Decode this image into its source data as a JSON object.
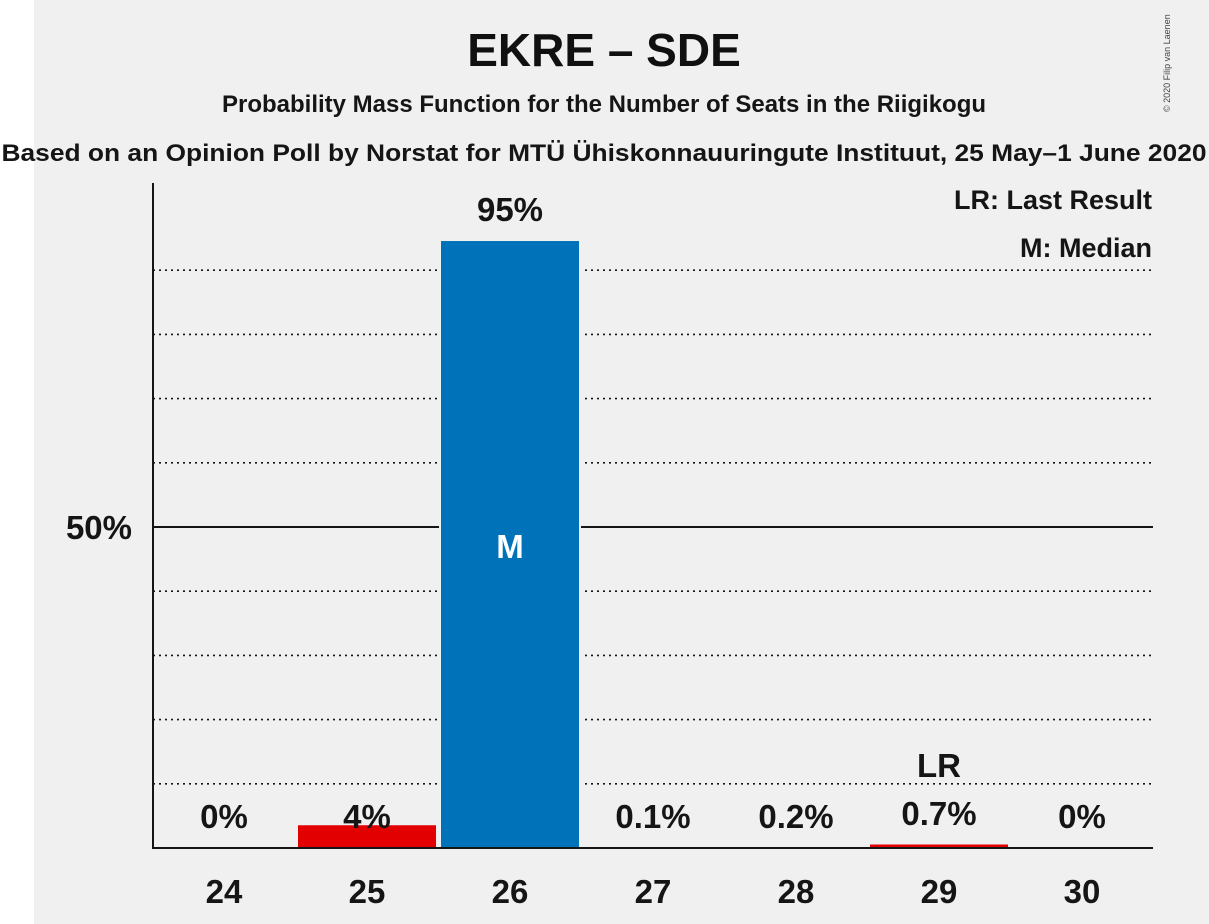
{
  "chart_data": {
    "type": "bar",
    "title": "EKRE – SDE",
    "subtitle": "Probability Mass Function for the Number of Seats in the Riigikogu",
    "subtitle2": "Based on an Opinion Poll by Norstat for MTÜ Ühiskonnauuringute Instituut, 25 May–1 June 2020",
    "copyright": "© 2020 Filip van Laenen",
    "legend": [
      "LR: Last Result",
      "M: Median"
    ],
    "legend_position": "top-right",
    "categories": [
      "24",
      "25",
      "26",
      "27",
      "28",
      "29",
      "30"
    ],
    "values": [
      0,
      3.7,
      94.7,
      0.1,
      0.2,
      0.7,
      0
    ],
    "value_labels": [
      "0%",
      "4%",
      "95%",
      "0.1%",
      "0.2%",
      "0.7%",
      "0%"
    ],
    "bar_colors": [
      "#0072B9",
      "#E30000",
      "#0072B9",
      "#0072B9",
      "#0072B9",
      "#E30000",
      "#0072B9"
    ],
    "median": {
      "category": "26",
      "label": "M"
    },
    "last_result": {
      "category": "29",
      "label": "LR"
    },
    "ytick_label": "50%",
    "ytick_value": 50,
    "ylim": [
      0,
      100
    ],
    "gridlines": [
      10,
      20,
      30,
      40,
      60,
      70,
      80,
      90
    ],
    "grid": true
  },
  "colors": {
    "background": "#F0F0F0",
    "blue": "#0072B9",
    "red": "#E30000",
    "text": "#151515"
  }
}
